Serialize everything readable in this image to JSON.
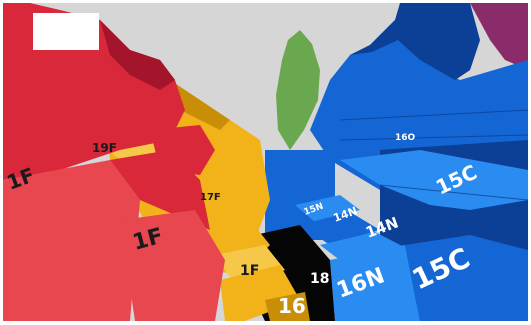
{
  "colors": {
    "sky": "#d6d6d6",
    "red": "#d8283a",
    "red_dark": "#a4142a",
    "red_top": "#e8474f",
    "yellow": "#f2b21a",
    "yellow_dark": "#c98e08",
    "yellow_top": "#f6c84a",
    "blue": "#1466d4",
    "blue_dark": "#0c3f96",
    "blue_top": "#2a8cf0",
    "purple": "#8a2b6a",
    "black": "#050505",
    "green": "#6aa84f",
    "label_box": "#ffffff"
  },
  "labels": {
    "red_1": "1F",
    "red_2": "1F",
    "yellow_1": "19F",
    "yellow_2": "1F",
    "yellow_3": "17F",
    "floor_1": "16",
    "floor_2": "18",
    "blue_1": "15C",
    "blue_2": "16N",
    "blue_3": "15C",
    "blue_4": "14N",
    "blue_5": "14N",
    "blue_6": "15N",
    "blue_7": "16O"
  }
}
